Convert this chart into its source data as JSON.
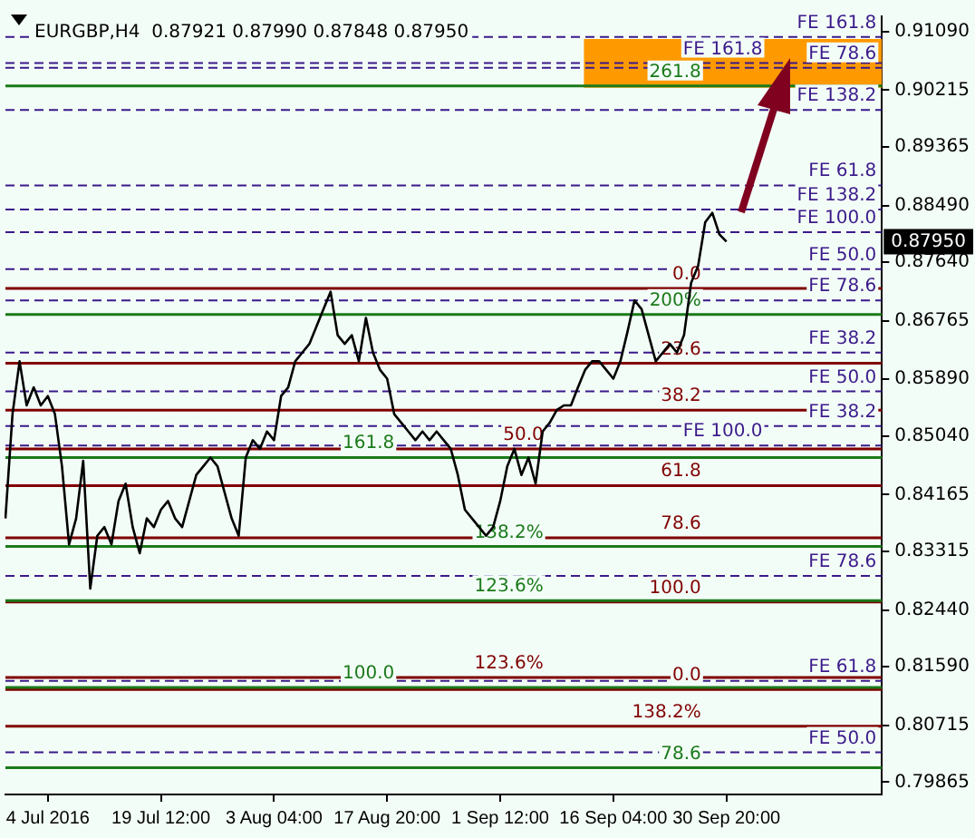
{
  "chart_data": {
    "type": "line",
    "title": "EURGBP,H4  0.87921 0.87990 0.87848 0.87950",
    "categories": [
      null,
      null,
      null,
      null,
      null,
      null,
      "4 Jul 2016",
      null,
      null,
      null,
      null,
      null,
      null,
      null,
      null,
      null,
      null,
      null,
      null,
      null,
      null,
      null,
      "19 Jul 12:00",
      null,
      null,
      null,
      null,
      null,
      null,
      null,
      null,
      null,
      null,
      null,
      null,
      null,
      null,
      null,
      "3 Aug 04:00",
      null,
      null,
      null,
      null,
      null,
      null,
      null,
      null,
      null,
      null,
      null,
      null,
      null,
      null,
      null,
      "17 Aug 20:00",
      null,
      null,
      null,
      null,
      null,
      null,
      null,
      null,
      null,
      null,
      null,
      null,
      null,
      null,
      null,
      "1 Sep 12:00",
      null,
      null,
      null,
      null,
      null,
      null,
      null,
      null,
      null,
      null,
      null,
      null,
      null,
      null,
      null,
      "16 Sep 04:00",
      null,
      null,
      null,
      null,
      null,
      null,
      null,
      null,
      null,
      null,
      null,
      null,
      null,
      null,
      null,
      "30 Sep 20:00",
      null,
      null,
      null,
      null,
      null,
      null,
      null,
      null,
      null,
      null,
      null,
      null,
      null,
      null,
      null,
      null,
      null,
      null,
      null,
      null,
      null,
      null
    ],
    "series": [
      {
        "color": "#000000",
        "values": [
          0.8381,
          0.8537,
          0.8616,
          0.855,
          0.8577,
          0.855,
          0.8564,
          0.8537,
          0.8459,
          0.8342,
          0.8381,
          0.8467,
          0.8276,
          0.8355,
          0.8368,
          0.8342,
          0.8407,
          0.8433,
          0.8368,
          0.8329,
          0.8381,
          0.8368,
          0.8394,
          0.8407,
          0.8381,
          0.8368,
          0.8407,
          0.8446,
          0.8459,
          0.8472,
          0.8459,
          0.842,
          0.8381,
          0.8355,
          0.8472,
          0.8498,
          0.8485,
          0.8511,
          0.8498,
          0.8564,
          0.8577,
          0.8616,
          0.8629,
          0.8642,
          0.8668,
          0.8694,
          0.872,
          0.8655,
          0.8642,
          0.8655,
          0.8616,
          0.8681,
          0.8629,
          0.8603,
          0.859,
          0.8537,
          0.8524,
          0.8511,
          0.8498,
          0.8511,
          0.8498,
          0.8511,
          0.8498,
          0.8485,
          0.8446,
          0.8394,
          0.8381,
          0.8368,
          0.8355,
          0.8368,
          0.8407,
          0.8459,
          0.8485,
          0.8446,
          0.8472,
          0.8433,
          0.8511,
          0.8524,
          0.8543,
          0.855,
          0.855,
          0.8577,
          0.8603,
          0.8616,
          0.8616,
          0.8603,
          0.859,
          0.8616,
          0.866,
          0.8707,
          0.8694,
          0.8655,
          0.8616,
          0.8629,
          0.8642,
          0.8629,
          0.8655,
          0.8733,
          0.8759,
          0.8824,
          0.8838,
          0.8806,
          0.8795,
          null,
          null,
          null,
          null,
          null,
          null,
          null,
          null,
          null,
          null,
          null,
          null,
          null,
          null,
          null,
          null,
          null,
          null,
          null,
          null,
          null,
          null
        ]
      }
    ],
    "ylim": [
      0.7968,
      0.9132
    ],
    "yticks": [
      {
        "value": 0.9109,
        "label": "0.91090"
      },
      0.90215,
      0.89365,
      {
        "value": 0.8849,
        "label": "0.88490"
      },
      {
        "value": 0.8764,
        "label": "0.87640"
      },
      0.86765,
      {
        "value": 0.8589,
        "label": "0.85890"
      },
      {
        "value": 0.8504,
        "label": "0.85040"
      },
      0.84165,
      0.83315,
      {
        "value": 0.8244,
        "label": "0.82440"
      },
      {
        "value": 0.8159,
        "label": "0.81590"
      },
      0.80715,
      0.79865
    ],
    "grid": false,
    "legend": false,
    "marker": "none",
    "line_style": "solid",
    "bands": [
      {
        "axis": "y",
        "from": 0.9025,
        "to": 0.9098,
        "color": "#ff9900"
      }
    ],
    "ref_lines": [
      {
        "axis": "y",
        "value": 0.9101,
        "label": "FE 161.8",
        "color": "#3a1a8a",
        "line_style": "dashed"
      },
      {
        "axis": "y",
        "value": 0.9055,
        "label": "FE 78.6",
        "color": "#3a1a8a",
        "line_style": "dashed"
      },
      {
        "axis": "y",
        "value": 0.9062,
        "label": "FE 161.8",
        "color": "#3a1a8a",
        "line_style": "dashed"
      },
      {
        "axis": "y",
        "value": 0.8992,
        "label": "FE 138.2",
        "color": "#3a1a8a",
        "line_style": "dashed"
      },
      {
        "axis": "y",
        "value": 0.8879,
        "label": "FE 61.8",
        "color": "#3a1a8a",
        "line_style": "dashed"
      },
      {
        "axis": "y",
        "value": 0.8809,
        "label": "FE 100.0",
        "color": "#3a1a8a",
        "line_style": "dashed"
      },
      {
        "axis": "y",
        "value": 0.8843,
        "label": "FE 138.2",
        "color": "#3a1a8a",
        "line_style": "dashed"
      },
      {
        "axis": "y",
        "value": 0.8754,
        "label": "FE 50.0",
        "color": "#3a1a8a",
        "line_style": "dashed"
      },
      {
        "axis": "y",
        "value": 0.8707,
        "label": "FE 78.6",
        "color": "#3a1a8a",
        "line_style": "dashed"
      },
      {
        "axis": "y",
        "value": 0.8629,
        "label": "FE 38.2",
        "color": "#3a1a8a",
        "line_style": "dashed"
      },
      {
        "axis": "y",
        "value": 0.8571,
        "label": "FE 50.0",
        "color": "#3a1a8a",
        "line_style": "dashed"
      },
      {
        "axis": "y",
        "value": 0.8519,
        "label": "FE 38.2",
        "color": "#3a1a8a",
        "line_style": "dashed"
      },
      {
        "axis": "y",
        "value": 0.849,
        "label": "FE 100.0",
        "color": "#3a1a8a",
        "line_style": "dashed"
      },
      {
        "axis": "y",
        "value": 0.8295,
        "label": "FE 78.6",
        "color": "#3a1a8a",
        "line_style": "dashed"
      },
      {
        "axis": "y",
        "value": 0.8138,
        "label": "FE 61.8",
        "color": "#3a1a8a",
        "line_style": "dashed"
      },
      {
        "axis": "y",
        "value": 0.8031,
        "label": "FE 50.0",
        "color": "#3a1a8a",
        "line_style": "dashed"
      },
      {
        "axis": "y",
        "value": 0.8725,
        "color": "#800000",
        "line_style": "solid"
      },
      {
        "axis": "y",
        "value": 0.8613,
        "color": "#800000",
        "line_style": "solid"
      },
      {
        "axis": "y",
        "value": 0.8543,
        "color": "#800000",
        "line_style": "solid"
      },
      {
        "axis": "y",
        "value": 0.8485,
        "color": "#800000",
        "line_style": "solid"
      },
      {
        "axis": "y",
        "value": 0.843,
        "color": "#800000",
        "line_style": "solid"
      },
      {
        "axis": "y",
        "value": 0.8352,
        "color": "#800000",
        "line_style": "solid"
      },
      {
        "axis": "y",
        "value": 0.8256,
        "color": "#800000",
        "line_style": "solid"
      },
      {
        "axis": "y",
        "value": 0.8125,
        "color": "#800000",
        "line_style": "solid"
      },
      {
        "axis": "y",
        "value": 0.8143,
        "color": "#800000",
        "line_style": "solid"
      },
      {
        "axis": "y",
        "value": 0.807,
        "color": "#800000",
        "line_style": "solid"
      },
      {
        "axis": "y",
        "value": 0.9028,
        "color": "#1a7a1a",
        "line_style": "solid"
      },
      {
        "axis": "y",
        "value": 0.8686,
        "color": "#1a7a1a",
        "line_style": "solid"
      },
      {
        "axis": "y",
        "value": 0.8472,
        "color": "#1a7a1a",
        "line_style": "solid"
      },
      {
        "axis": "y",
        "value": 0.8339,
        "color": "#1a7a1a",
        "line_style": "solid"
      },
      {
        "axis": "y",
        "value": 0.8258,
        "color": "#1a7a1a",
        "line_style": "solid"
      },
      {
        "axis": "y",
        "value": 0.8128,
        "color": "#1a7a1a",
        "line_style": "solid"
      },
      {
        "axis": "y",
        "value": 0.8008,
        "color": "#1a7a1a",
        "line_style": "solid"
      }
    ],
    "annotations": [
      "0.87950",
      {
        "text": "0.0",
        "y": 0.8725
      },
      {
        "text": "23.6",
        "y": 0.8613
      },
      {
        "text": "38.2",
        "y": 0.8543
      },
      {
        "text": "50.0",
        "y": 0.8485
      },
      {
        "text": "61.8",
        "y": 0.843
      },
      {
        "text": "78.6",
        "y": 0.8352
      },
      {
        "text": "100.0",
        "y": 0.8256
      },
      {
        "text": "0.0",
        "y": 0.8125
      },
      {
        "text": "123.6%",
        "y": 0.8143
      },
      {
        "text": "138.2%",
        "y": 0.807
      },
      {
        "text": "261.8",
        "y": 0.9028
      },
      {
        "text": "200%",
        "y": 0.8686
      },
      {
        "text": "161.8",
        "y": 0.8472
      },
      {
        "text": "138.2%",
        "y": 0.8339
      },
      {
        "text": "123.6%",
        "y": 0.8258
      },
      {
        "text": "100.0",
        "y": 0.8128
      },
      {
        "text": "78.6",
        "y": 0.8008
      }
    ]
  }
}
